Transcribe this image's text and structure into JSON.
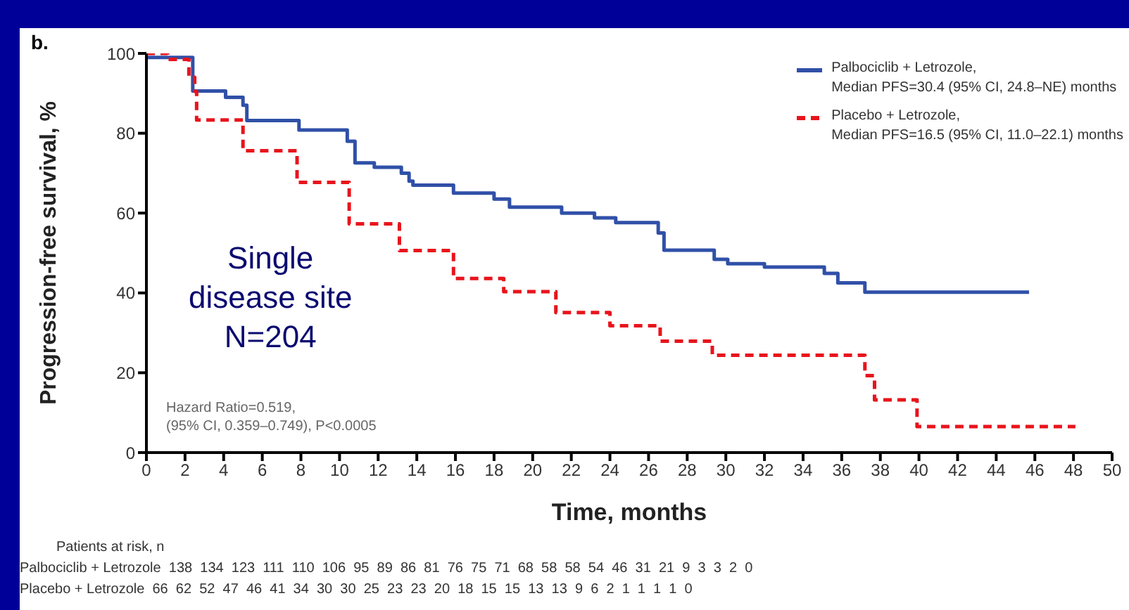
{
  "chart_data": {
    "type": "step",
    "title": "b.",
    "xlabel": "Time, months",
    "ylabel": "Progression-free survival, %",
    "xlim": [
      0,
      50
    ],
    "xticks": [
      0,
      2,
      4,
      6,
      8,
      10,
      12,
      14,
      16,
      18,
      20,
      22,
      24,
      26,
      28,
      30,
      32,
      34,
      36,
      38,
      40,
      42,
      44,
      46,
      48,
      50
    ],
    "ylim": [
      0,
      100
    ],
    "yticks": [
      0,
      20,
      40,
      60,
      80,
      100
    ],
    "grid": false,
    "legend": "top right",
    "series": [
      {
        "name": "Palbociclib + Letrozole,\nMedian PFS=30.4 (95% CI, 24.8–NE) months",
        "color": "#3050a8",
        "line_style": "solid",
        "x": [
          0,
          2.4,
          4.1,
          5.0,
          5.2,
          7.9,
          10.4,
          10.8,
          11.8,
          13.2,
          13.6,
          13.8,
          15.9,
          18.0,
          18.8,
          21.5,
          23.2,
          24.3,
          26.5,
          26.8,
          29.4,
          30.1,
          32.0,
          35.1,
          35.8,
          37.2,
          45.7
        ],
        "values": [
          99,
          90.6,
          89,
          87,
          83.2,
          80.8,
          78,
          72.6,
          71.5,
          70,
          68,
          67,
          65,
          63.5,
          61.5,
          60,
          58.8,
          57.6,
          55,
          50.7,
          48.4,
          47.3,
          46.5,
          44.9,
          42.5,
          40.2,
          40.2
        ]
      },
      {
        "name": "Placebo + Letrozole,\nMedian PFS=16.5 (95% CI, 11.0–22.1) months",
        "color": "#e8141c",
        "line_style": "dashed",
        "x": [
          0,
          1.1,
          2.2,
          2.5,
          2.6,
          5.0,
          7.8,
          10.5,
          13.1,
          15.9,
          18.5,
          21.2,
          24.0,
          26.6,
          29.3,
          37.2,
          37.7,
          39.9,
          48.1
        ],
        "values": [
          100,
          98.5,
          94,
          90.5,
          83.3,
          75.6,
          67.7,
          57.3,
          50.6,
          43.6,
          40.3,
          35.1,
          31.8,
          27.9,
          24.4,
          19.3,
          13.2,
          6.5,
          6.5
        ]
      }
    ],
    "annotations": [
      "Single\ndisease site\nN=204",
      "Hazard Ratio=0.519,\n(95% CI, 0.359–0.749), P<0.0005",
      "Patients at risk, n",
      "Palbociclib + Letrozole  138  134  123  111  110  106  95  89  86  81  76  75  71  68  58  58  54  46  31  21  9  3  3  2  0",
      "Placebo + Letrozole  66  62  52  47  46  41  34  30  30  25  23  23  20  18  15  15  13  13  9  6  2  1  1  1  1  0"
    ]
  }
}
